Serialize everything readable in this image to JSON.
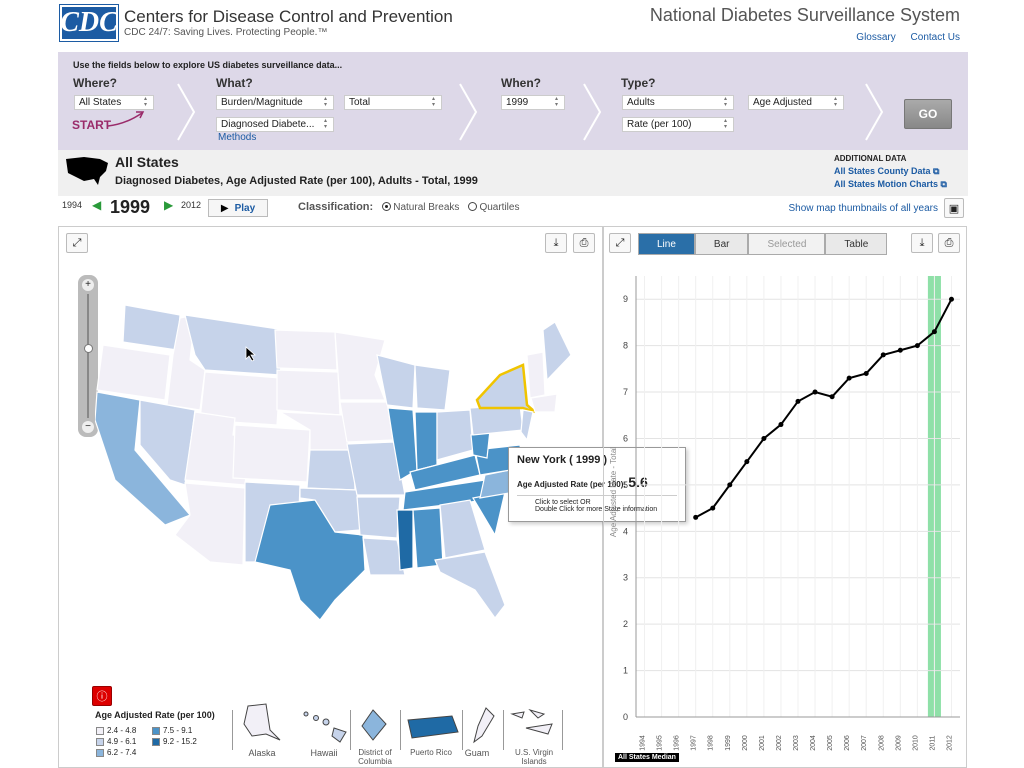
{
  "header": {
    "logo": "CDC",
    "org_name": "Centers for Disease Control and Prevention",
    "tagline": "CDC 24/7: Saving Lives. Protecting People.™",
    "system_title": "National Diabetes Surveillance System",
    "links": [
      "Glossary",
      "Contact Us"
    ]
  },
  "query": {
    "intro": "Use the fields below to explore US diabetes surveillance data...",
    "where_label": "Where?",
    "where_value": "All States",
    "start_label": "START",
    "what_label": "What?",
    "what_value1": "Burden/Magnitude",
    "what_value2": "Total",
    "what_value3": "Diagnosed Diabete...",
    "methods": "Methods",
    "when_label": "When?",
    "when_value": "1999",
    "type_label": "Type?",
    "type_value1": "Adults",
    "type_value2": "Age Adjusted",
    "type_value3": "Rate (per 100)",
    "go": "GO"
  },
  "title": {
    "main": "All States",
    "sub": "Diagnosed Diabetes, Age Adjusted Rate (per 100), Adults - Total, 1999",
    "additional_label": "ADDITIONAL DATA",
    "link1": "All States County Data",
    "link2": "All States Motion Charts"
  },
  "controls": {
    "start_year": "1994",
    "current_year": "1999",
    "end_year": "2012",
    "play": "Play",
    "classification_label": "Classification:",
    "option1": "Natural Breaks",
    "option2": "Quartiles",
    "thumbnails": "Show map thumbnails of all years"
  },
  "chart_tabs": [
    "Line",
    "Bar",
    "Selected",
    "Table"
  ],
  "tooltip": {
    "state": "New York   ( 1999 )",
    "metric_label": "Age Adjusted  Rate (per 100):",
    "value": "5.6",
    "hint1": "Click to select OR",
    "hint2": "Double Click for more State information"
  },
  "legend": {
    "title": "Age Adjusted Rate (per 100)",
    "items": [
      {
        "label": "2.4 - 4.8",
        "color": "#f2f0f7"
      },
      {
        "label": "4.9 - 6.1",
        "color": "#c6d3ea"
      },
      {
        "label": "6.2 - 7.4",
        "color": "#8bb5dc"
      },
      {
        "label": "7.5 - 9.1",
        "color": "#4b93c8"
      },
      {
        "label": "9.2 - 15.2",
        "color": "#1f6aa5"
      }
    ]
  },
  "territories": [
    "Alaska",
    "Hawaii",
    "District of Columbia",
    "Puerto Rico",
    "Guam",
    "U.S. Virgin Islands"
  ],
  "chart_data": {
    "type": "line",
    "x": [
      1994,
      1995,
      1996,
      1997,
      1998,
      1999,
      2000,
      2001,
      2002,
      2003,
      2004,
      2005,
      2006,
      2007,
      2008,
      2009,
      2010,
      2011,
      2012
    ],
    "values": [
      null,
      null,
      null,
      4.3,
      4.5,
      5.0,
      5.5,
      6.0,
      6.3,
      6.8,
      7.0,
      6.9,
      7.3,
      7.4,
      7.8,
      7.9,
      8.0,
      8.3,
      9.0
    ],
    "title": "",
    "xlabel": "",
    "ylabel": "Age Adjusted Rate - Total",
    "ylim": [
      0,
      9.5
    ],
    "yticks": [
      0,
      1,
      2,
      3,
      4,
      5,
      6,
      7,
      8,
      9
    ],
    "highlight_year": 2011,
    "series_label": "All States Median"
  }
}
